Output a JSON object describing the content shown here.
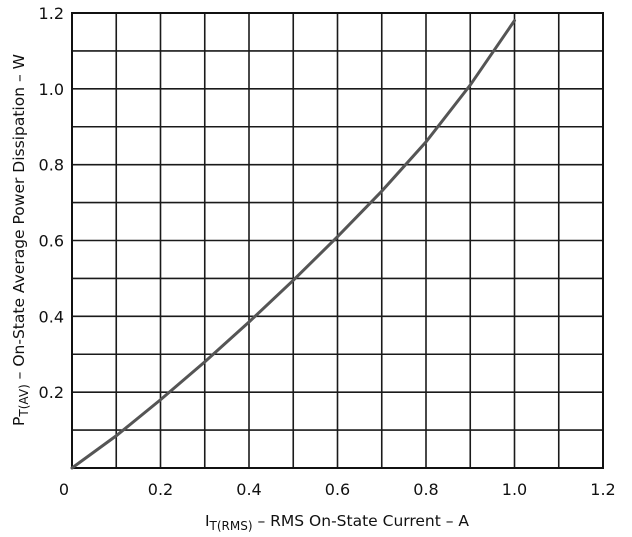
{
  "chart_data": {
    "type": "line",
    "xlabel": {
      "main": "I",
      "sub": "T(RMS)",
      "rest": " – RMS On-State Current – A"
    },
    "ylabel": {
      "main": "P",
      "sub": "T(AV)",
      "rest": " – On-State Average Power Dissipation – W"
    },
    "xlim": [
      0,
      1.2
    ],
    "ylim": [
      0,
      1.2
    ],
    "x_major_step": 0.2,
    "x_minor_step": 0.1,
    "y_major_step": 0.2,
    "y_minor_step": 0.1,
    "x_ticks": [
      "0",
      "0.2",
      "0.4",
      "0.6",
      "0.8",
      "1.0",
      "1.2"
    ],
    "y_ticks": [
      "0.2",
      "0.4",
      "0.6",
      "0.8",
      "1.0",
      "1.2"
    ],
    "grid": true,
    "series": [
      {
        "x": [
          0,
          0.1,
          0.2,
          0.3,
          0.4,
          0.5,
          0.6,
          0.7,
          0.8,
          0.9,
          1.0
        ],
        "y": [
          0,
          0.085,
          0.18,
          0.28,
          0.385,
          0.495,
          0.61,
          0.73,
          0.86,
          1.01,
          1.18
        ]
      }
    ]
  }
}
